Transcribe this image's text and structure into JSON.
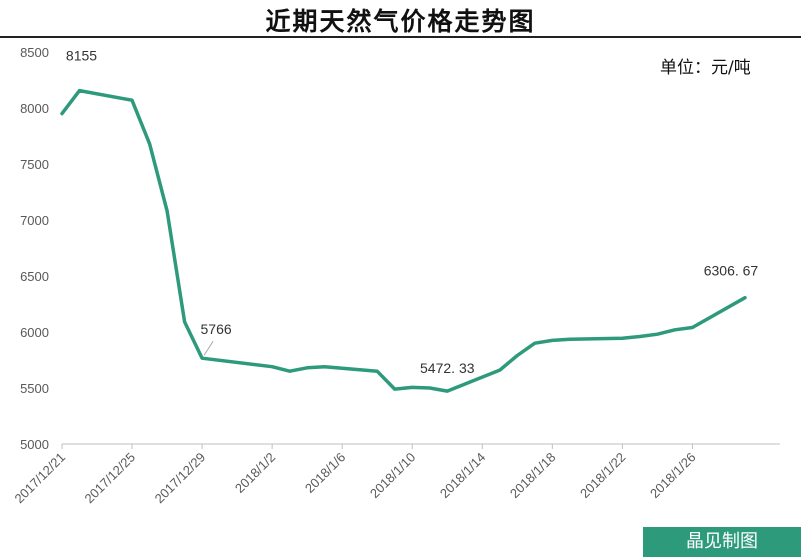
{
  "chart_data": {
    "type": "line",
    "title": "近期天然气价格走势图",
    "unit_note": "单位：元/吨",
    "xlabel": "",
    "ylabel": "",
    "ylim": [
      5000,
      8500
    ],
    "yticks": [
      5000,
      5500,
      6000,
      6500,
      7000,
      7500,
      8000,
      8500
    ],
    "xlim": [
      "2017/12/21",
      "2018/1/31"
    ],
    "xtick_labels": [
      "2017/12/21",
      "2017/12/25",
      "2017/12/29",
      "2018/1/2",
      "2018/1/6",
      "2018/1/10",
      "2018/1/14",
      "2018/1/18",
      "2018/1/22",
      "2018/1/26"
    ],
    "grid": false,
    "legend": "none",
    "line_color": "#2e9a7c",
    "series": [
      {
        "x": [
          "2017/12/21",
          "2017/12/22",
          "2017/12/25",
          "2017/12/26",
          "2017/12/27",
          "2017/12/28",
          "2017/12/29",
          "2018/1/2",
          "2018/1/3",
          "2018/1/4",
          "2018/1/5",
          "2018/1/8",
          "2018/1/9",
          "2018/1/10",
          "2018/1/11",
          "2018/1/12",
          "2018/1/15",
          "2018/1/16",
          "2018/1/17",
          "2018/1/18",
          "2018/1/19",
          "2018/1/22",
          "2018/1/23",
          "2018/1/24",
          "2018/1/25",
          "2018/1/26",
          "2018/1/29"
        ],
        "values": [
          7950,
          8155,
          8070,
          7680,
          7080,
          6090,
          5766,
          5690,
          5650,
          5680,
          5690,
          5650,
          5490,
          5505,
          5500,
          5472.33,
          5660,
          5790,
          5900,
          5925,
          5935,
          5945,
          5960,
          5980,
          6020,
          6040,
          6306.67
        ]
      }
    ],
    "annotations": [
      {
        "x": "2017/12/22",
        "y": 8155,
        "text": "8155"
      },
      {
        "x": "2017/12/29",
        "y": 5766,
        "text": "5766"
      },
      {
        "x": "2018/1/12",
        "y": 5472.33,
        "text": "5472. 33"
      },
      {
        "x": "2018/1/29",
        "y": 6306.67,
        "text": "6306. 67"
      }
    ]
  },
  "watermark": "晶见制图"
}
